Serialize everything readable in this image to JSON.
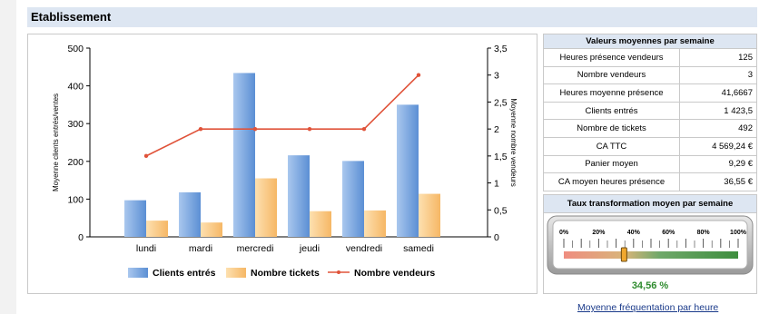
{
  "section": {
    "title": "Etablissement"
  },
  "chart_data": {
    "type": "bar",
    "categories": [
      "lundi",
      "mardi",
      "mercredi",
      "jeudi",
      "vendredi",
      "samedi"
    ],
    "series": [
      {
        "name": "Clients entrés",
        "type": "bar",
        "axis": "left",
        "color": "#6f9fd8",
        "values": [
          97,
          118,
          434,
          216,
          201,
          350
        ]
      },
      {
        "name": "Nombre tickets",
        "type": "bar",
        "axis": "left",
        "color": "#f7be76",
        "values": [
          43,
          38,
          155,
          68,
          70,
          114
        ]
      },
      {
        "name": "Nombre vendeurs",
        "type": "line",
        "axis": "right",
        "color": "#e0533a",
        "values": [
          1.5,
          2,
          2,
          2,
          2,
          3
        ]
      }
    ],
    "ylabel": "Moyenne clients entrés/ventes",
    "y2label": "Moyenne nombre vendeurs",
    "ylim": [
      0,
      500
    ],
    "y2lim": [
      0,
      3.5
    ],
    "yticks": [
      "0",
      "100",
      "200",
      "300",
      "400",
      "500"
    ],
    "y2ticks": [
      "0",
      "0,5",
      "1",
      "1,5",
      "2",
      "2,5",
      "3",
      "3,5"
    ],
    "legend_position": "bottom",
    "grid": false
  },
  "stats": {
    "title": "Valeurs moyennes par semaine",
    "rows": [
      {
        "label": "Heures présence vendeurs",
        "value": "125"
      },
      {
        "label": "Nombre vendeurs",
        "value": "3"
      },
      {
        "label": "Heures moyenne présence",
        "value": "41,6667"
      },
      {
        "label": "Clients entrés",
        "value": "1 423,5"
      },
      {
        "label": "Nombre de tickets",
        "value": "492"
      },
      {
        "label": "CA TTC",
        "value": "4 569,24 €"
      },
      {
        "label": "Panier moyen",
        "value": "9,29 €"
      },
      {
        "label": "CA moyen heures présence",
        "value": "36,55 €"
      }
    ]
  },
  "gauge": {
    "title": "Taux transformation moyen par semaine",
    "scale_labels": [
      "0%",
      "20%",
      "40%",
      "60%",
      "80%",
      "100%"
    ],
    "fraction": 0.3456,
    "value_text": "34,56 %"
  },
  "link": {
    "label": "Moyenne fréquentation par heure"
  }
}
